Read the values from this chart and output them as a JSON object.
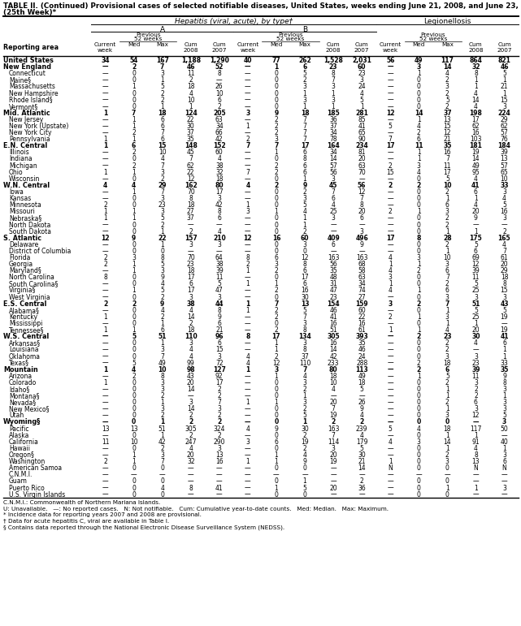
{
  "title_line1": "TABLE II. (Continued) Provisional cases of selected notifiable diseases, United States, weeks ending June 21, 2008, and June 23, 2007",
  "title_line2": "(25th Week)*",
  "col_group_header": "Hepatitis (viral, acute), by type†",
  "subgroup_A": "A",
  "subgroup_B": "B",
  "subgroup_leg": "Legionellosis",
  "rows": [
    [
      "United States",
      "34",
      "54",
      "167",
      "1,188",
      "1,290",
      "40",
      "77",
      "262",
      "1,528",
      "2,031",
      "56",
      "49",
      "117",
      "864",
      "821"
    ],
    [
      "New England",
      "—",
      "2",
      "7",
      "46",
      "52",
      "—",
      "1",
      "6",
      "23",
      "60",
      "—",
      "3",
      "14",
      "32",
      "46"
    ],
    [
      "Connecticut",
      "—",
      "0",
      "3",
      "11",
      "8",
      "—",
      "0",
      "5",
      "8",
      "23",
      "—",
      "1",
      "4",
      "8",
      "5"
    ],
    [
      "Maine§",
      "—",
      "0",
      "1",
      "2",
      "—",
      "—",
      "0",
      "2",
      "7",
      "3",
      "—",
      "0",
      "2",
      "1",
      "1"
    ],
    [
      "Massachusetts",
      "—",
      "1",
      "5",
      "18",
      "26",
      "—",
      "0",
      "3",
      "3",
      "24",
      "—",
      "0",
      "3",
      "1",
      "21"
    ],
    [
      "New Hampshire",
      "—",
      "0",
      "2",
      "4",
      "10",
      "—",
      "0",
      "1",
      "1",
      "4",
      "—",
      "0",
      "2",
      "4",
      "1"
    ],
    [
      "Rhode Island§",
      "—",
      "0",
      "2",
      "10",
      "6",
      "—",
      "0",
      "3",
      "3",
      "5",
      "—",
      "0",
      "5",
      "14",
      "15"
    ],
    [
      "Vermont§",
      "—",
      "0",
      "1",
      "1",
      "2",
      "—",
      "0",
      "1",
      "1",
      "1",
      "—",
      "0",
      "2",
      "4",
      "3"
    ],
    [
      "Mid. Atlantic",
      "1",
      "7",
      "18",
      "124",
      "205",
      "3",
      "9",
      "18",
      "185",
      "281",
      "12",
      "14",
      "37",
      "198",
      "224"
    ],
    [
      "New Jersey",
      "—",
      "1",
      "6",
      "22",
      "63",
      "—",
      "2",
      "7",
      "36",
      "85",
      "—",
      "1",
      "13",
      "17",
      "29"
    ],
    [
      "New York (Upstate)",
      "—",
      "1",
      "6",
      "30",
      "34",
      "1",
      "2",
      "7",
      "37",
      "41",
      "5",
      "4",
      "15",
      "62",
      "62"
    ],
    [
      "New York City",
      "—",
      "2",
      "7",
      "37",
      "66",
      "—",
      "2",
      "7",
      "34",
      "65",
      "—",
      "2",
      "12",
      "16",
      "57"
    ],
    [
      "Pennsylvania",
      "1",
      "1",
      "6",
      "35",
      "42",
      "2",
      "3",
      "7",
      "78",
      "90",
      "7",
      "6",
      "21",
      "103",
      "76"
    ],
    [
      "E.N. Central",
      "1",
      "6",
      "15",
      "148",
      "152",
      "7",
      "7",
      "17",
      "164",
      "234",
      "17",
      "11",
      "35",
      "181",
      "184"
    ],
    [
      "Illinois",
      "—",
      "2",
      "10",
      "45",
      "60",
      "—",
      "1",
      "6",
      "34",
      "81",
      "—",
      "1",
      "16",
      "19",
      "39"
    ],
    [
      "Indiana",
      "—",
      "0",
      "4",
      "7",
      "4",
      "—",
      "0",
      "8",
      "14",
      "20",
      "—",
      "1",
      "7",
      "14",
      "13"
    ],
    [
      "Michigan",
      "—",
      "2",
      "7",
      "62",
      "38",
      "—",
      "2",
      "6",
      "57",
      "63",
      "2",
      "3",
      "11",
      "49",
      "57"
    ],
    [
      "Ohio",
      "1",
      "1",
      "3",
      "22",
      "32",
      "7",
      "2",
      "6",
      "56",
      "70",
      "15",
      "4",
      "17",
      "95",
      "65"
    ],
    [
      "Wisconsin",
      "—",
      "0",
      "2",
      "12",
      "18",
      "—",
      "0",
      "1",
      "3",
      "—",
      "—",
      "0",
      "5",
      "4",
      "10"
    ],
    [
      "W.N. Central",
      "4",
      "4",
      "29",
      "162",
      "80",
      "4",
      "2",
      "9",
      "45",
      "56",
      "2",
      "2",
      "10",
      "41",
      "33"
    ],
    [
      "Iowa",
      "—",
      "1",
      "7",
      "70",
      "17",
      "—",
      "0",
      "2",
      "7",
      "12",
      "—",
      "0",
      "2",
      "6",
      "3"
    ],
    [
      "Kansas",
      "—",
      "0",
      "3",
      "8",
      "3",
      "—",
      "0",
      "3",
      "6",
      "7",
      "—",
      "0",
      "1",
      "1",
      "4"
    ],
    [
      "Minnesota",
      "2",
      "0",
      "23",
      "18",
      "42",
      "1",
      "0",
      "5",
      "4",
      "8",
      "—",
      "0",
      "6",
      "4",
      "5"
    ],
    [
      "Missouri",
      "1",
      "1",
      "3",
      "27",
      "8",
      "3",
      "1",
      "4",
      "25",
      "20",
      "2",
      "1",
      "3",
      "20",
      "16"
    ],
    [
      "Nebraska§",
      "1",
      "1",
      "5",
      "37",
      "6",
      "—",
      "0",
      "1",
      "3",
      "6",
      "—",
      "0",
      "2",
      "9",
      "3"
    ],
    [
      "North Dakota",
      "—",
      "0",
      "2",
      "—",
      "—",
      "—",
      "0",
      "1",
      "—",
      "—",
      "—",
      "0",
      "2",
      "—",
      "—"
    ],
    [
      "South Dakota",
      "—",
      "0",
      "1",
      "2",
      "4",
      "—",
      "0",
      "2",
      "—",
      "3",
      "—",
      "0",
      "1",
      "1",
      "2"
    ],
    [
      "S. Atlantic",
      "12",
      "9",
      "22",
      "157",
      "210",
      "12",
      "16",
      "60",
      "409",
      "496",
      "17",
      "8",
      "28",
      "175",
      "165"
    ],
    [
      "Delaware",
      "—",
      "0",
      "1",
      "3",
      "3",
      "—",
      "0",
      "3",
      "6",
      "9",
      "—",
      "0",
      "2",
      "5",
      "4"
    ],
    [
      "District of Columbia",
      "—",
      "0",
      "0",
      "—",
      "—",
      "—",
      "0",
      "0",
      "—",
      "—",
      "—",
      "0",
      "1",
      "6",
      "7"
    ],
    [
      "Florida",
      "2",
      "3",
      "8",
      "70",
      "64",
      "8",
      "6",
      "12",
      "163",
      "163",
      "4",
      "3",
      "10",
      "69",
      "61"
    ],
    [
      "Georgia",
      "2",
      "1",
      "5",
      "23",
      "38",
      "2",
      "3",
      "8",
      "56",
      "68",
      "1",
      "1",
      "3",
      "12",
      "20"
    ],
    [
      "Maryland§",
      "—",
      "1",
      "3",
      "18",
      "39",
      "1",
      "2",
      "6",
      "35",
      "58",
      "4",
      "2",
      "6",
      "39",
      "29"
    ],
    [
      "North Carolina",
      "8",
      "0",
      "9",
      "17",
      "11",
      "—",
      "0",
      "17",
      "48",
      "63",
      "3",
      "0",
      "7",
      "11",
      "18"
    ],
    [
      "South Carolina§",
      "—",
      "0",
      "4",
      "6",
      "5",
      "1",
      "1",
      "6",
      "31",
      "34",
      "1",
      "0",
      "2",
      "5",
      "8"
    ],
    [
      "Virginia§",
      "—",
      "1",
      "5",
      "17",
      "47",
      "—",
      "2",
      "16",
      "47",
      "74",
      "4",
      "1",
      "6",
      "25",
      "15"
    ],
    [
      "West Virginia",
      "—",
      "0",
      "2",
      "3",
      "3",
      "—",
      "0",
      "30",
      "23",
      "27",
      "—",
      "0",
      "3",
      "3",
      "3"
    ],
    [
      "E.S. Central",
      "2",
      "2",
      "9",
      "38",
      "44",
      "1",
      "7",
      "13",
      "154",
      "159",
      "3",
      "2",
      "7",
      "51",
      "43"
    ],
    [
      "Alabama§",
      "—",
      "0",
      "4",
      "4",
      "8",
      "1",
      "2",
      "5",
      "46",
      "60",
      "—",
      "0",
      "1",
      "5",
      "5"
    ],
    [
      "Kentucky",
      "1",
      "0",
      "2",
      "14",
      "9",
      "—",
      "2",
      "7",
      "41",
      "22",
      "2",
      "1",
      "3",
      "25",
      "19"
    ],
    [
      "Mississippi",
      "—",
      "0",
      "1",
      "2",
      "6",
      "—",
      "0",
      "3",
      "16",
      "16",
      "—",
      "0",
      "1",
      "1",
      "—"
    ],
    [
      "Tennessee§",
      "1",
      "1",
      "6",
      "18",
      "21",
      "—",
      "2",
      "8",
      "51",
      "61",
      "1",
      "1",
      "4",
      "20",
      "19"
    ],
    [
      "W.S. Central",
      "—",
      "5",
      "51",
      "110",
      "96",
      "8",
      "17",
      "134",
      "305",
      "393",
      "—",
      "2",
      "23",
      "30",
      "41"
    ],
    [
      "Arkansas§",
      "—",
      "0",
      "1",
      "3",
      "6",
      "—",
      "1",
      "3",
      "16",
      "35",
      "—",
      "0",
      "2",
      "4",
      "6"
    ],
    [
      "Louisiana",
      "—",
      "0",
      "3",
      "4",
      "15",
      "—",
      "1",
      "8",
      "14",
      "46",
      "—",
      "0",
      "2",
      "—",
      "1"
    ],
    [
      "Oklahoma",
      "—",
      "0",
      "7",
      "4",
      "3",
      "4",
      "2",
      "37",
      "42",
      "24",
      "—",
      "0",
      "3",
      "3",
      "1"
    ],
    [
      "Texas§",
      "—",
      "5",
      "49",
      "99",
      "72",
      "4",
      "12",
      "110",
      "233",
      "288",
      "—",
      "2",
      "18",
      "23",
      "33"
    ],
    [
      "Mountain",
      "1",
      "4",
      "10",
      "98",
      "127",
      "1",
      "3",
      "7",
      "80",
      "113",
      "—",
      "2",
      "6",
      "39",
      "35"
    ],
    [
      "Arizona",
      "—",
      "2",
      "8",
      "43",
      "92",
      "—",
      "1",
      "4",
      "18",
      "49",
      "—",
      "1",
      "5",
      "11",
      "9"
    ],
    [
      "Colorado",
      "1",
      "0",
      "3",
      "20",
      "17",
      "—",
      "0",
      "3",
      "10",
      "18",
      "—",
      "0",
      "2",
      "3",
      "8"
    ],
    [
      "Idaho§",
      "—",
      "0",
      "3",
      "14",
      "2",
      "—",
      "0",
      "2",
      "4",
      "5",
      "—",
      "0",
      "1",
      "2",
      "3"
    ],
    [
      "Montana§",
      "—",
      "0",
      "2",
      "—",
      "2",
      "—",
      "0",
      "1",
      "—",
      "—",
      "—",
      "0",
      "1",
      "2",
      "1"
    ],
    [
      "Nevada§",
      "—",
      "0",
      "1",
      "3",
      "7",
      "1",
      "1",
      "3",
      "20",
      "26",
      "—",
      "0",
      "2",
      "6",
      "3"
    ],
    [
      "New Mexico§",
      "—",
      "0",
      "3",
      "14",
      "3",
      "—",
      "0",
      "2",
      "7",
      "9",
      "—",
      "0",
      "1",
      "3",
      "3"
    ],
    [
      "Utah",
      "—",
      "0",
      "2",
      "2",
      "2",
      "—",
      "0",
      "5",
      "19",
      "4",
      "—",
      "0",
      "3",
      "12",
      "5"
    ],
    [
      "Wyoming§",
      "—",
      "0",
      "1",
      "2",
      "2",
      "—",
      "0",
      "1",
      "2",
      "2",
      "—",
      "0",
      "0",
      "—",
      "3"
    ],
    [
      "Pacific",
      "13",
      "13",
      "51",
      "305",
      "324",
      "4",
      "9",
      "30",
      "163",
      "239",
      "5",
      "4",
      "18",
      "117",
      "50"
    ],
    [
      "Alaska",
      "—",
      "0",
      "1",
      "2",
      "2",
      "—",
      "0",
      "2",
      "7",
      "4",
      "—",
      "0",
      "1",
      "1",
      "—"
    ],
    [
      "California",
      "11",
      "10",
      "42",
      "247",
      "290",
      "3",
      "6",
      "19",
      "114",
      "179",
      "4",
      "3",
      "14",
      "91",
      "40"
    ],
    [
      "Hawaii",
      "—",
      "0",
      "2",
      "4",
      "3",
      "—",
      "0",
      "2",
      "3",
      "5",
      "—",
      "0",
      "1",
      "4",
      "1"
    ],
    [
      "Oregon§",
      "—",
      "1",
      "3",
      "20",
      "13",
      "—",
      "1",
      "4",
      "20",
      "30",
      "—",
      "0",
      "2",
      "8",
      "3"
    ],
    [
      "Washington",
      "2",
      "1",
      "7",
      "32",
      "16",
      "1",
      "1",
      "9",
      "19",
      "21",
      "1",
      "0",
      "3",
      "13",
      "6"
    ],
    [
      "American Samoa",
      "—",
      "0",
      "0",
      "—",
      "—",
      "—",
      "0",
      "0",
      "—",
      "14",
      "N",
      "0",
      "0",
      "N",
      "N"
    ],
    [
      "C.N.M.I.",
      "—",
      "—",
      "—",
      "—",
      "—",
      "—",
      "—",
      "—",
      "—",
      "—",
      "—",
      "—",
      "—",
      "—",
      "—"
    ],
    [
      "Guam",
      "—",
      "0",
      "0",
      "—",
      "—",
      "—",
      "0",
      "1",
      "—",
      "2",
      "—",
      "0",
      "0",
      "—",
      "—"
    ],
    [
      "Puerto Rico",
      "—",
      "0",
      "4",
      "8",
      "41",
      "—",
      "1",
      "5",
      "20",
      "36",
      "—",
      "0",
      "1",
      "1",
      "3"
    ],
    [
      "U.S. Virgin Islands",
      "—",
      "0",
      "0",
      "—",
      "—",
      "—",
      "0",
      "0",
      "—",
      "—",
      "—",
      "0",
      "0",
      "—",
      "—"
    ]
  ],
  "bold_rows": [
    0,
    1,
    8,
    13,
    19,
    27,
    37,
    42,
    47,
    55
  ],
  "footnotes": [
    "C.N.M.I.: Commonwealth of Northern Mariana Islands.",
    "U: Unavailable.   —: No reported cases.   N: Not notifiable.   Cum: Cumulative year-to-date counts.   Med: Median.   Max: Maximum.",
    "* Incidence data for reporting years 2007 and 2008 are provisional.",
    "† Data for acute hepatitis C, viral are available in Table I.",
    "§ Contains data reported through the National Electronic Disease Surveillance System (NEDSS)."
  ]
}
